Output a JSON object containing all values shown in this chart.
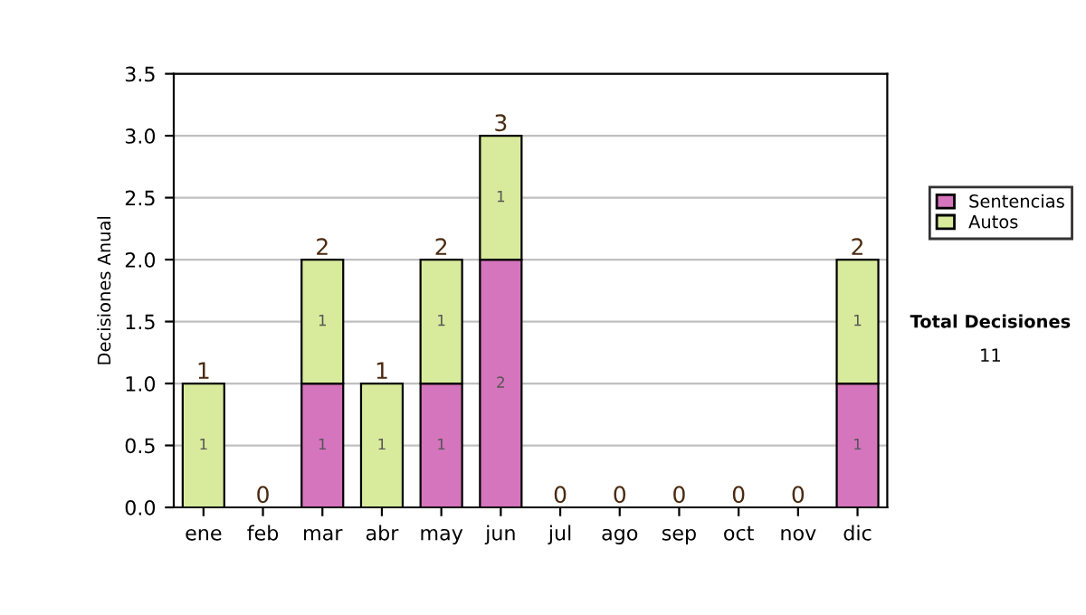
{
  "chart_data": {
    "type": "bar",
    "stacked": true,
    "ylabel": "Decisiones Anual",
    "categories": [
      "ene",
      "feb",
      "mar",
      "abr",
      "may",
      "jun",
      "jul",
      "ago",
      "sep",
      "oct",
      "nov",
      "dic"
    ],
    "series": [
      {
        "name": "Sentencias",
        "color": "#d575bd",
        "values": [
          0,
          0,
          1,
          0,
          1,
          2,
          0,
          0,
          0,
          0,
          0,
          1
        ],
        "value_labels": [
          null,
          null,
          "1",
          null,
          "1",
          "2",
          null,
          null,
          null,
          null,
          null,
          "1"
        ]
      },
      {
        "name": "Autos",
        "color": "#d8eb9c",
        "values": [
          1,
          0,
          1,
          1,
          1,
          1,
          0,
          0,
          0,
          0,
          0,
          1
        ],
        "value_labels": [
          "1",
          null,
          "1",
          "1",
          "1",
          "1",
          null,
          null,
          null,
          null,
          null,
          "1"
        ]
      }
    ],
    "totals": [
      "1",
      "0",
      "2",
      "1",
      "2",
      "3",
      "0",
      "0",
      "0",
      "0",
      "0",
      "2"
    ],
    "ylim": [
      0,
      3.5
    ],
    "yticks": [
      {
        "value": 0,
        "label": "0.0"
      },
      {
        "value": 0.5,
        "label": "0.5"
      },
      {
        "value": 1,
        "label": "1.0"
      },
      {
        "value": 1.5,
        "label": "1.5"
      },
      {
        "value": 2,
        "label": "2.0"
      },
      {
        "value": 2.5,
        "label": "2.5"
      },
      {
        "value": 3,
        "label": "3.0"
      },
      {
        "value": 3.5,
        "label": "3.5"
      }
    ],
    "grid": "y",
    "legend": "right",
    "annotations": [
      "Total Decisiones",
      "11"
    ]
  }
}
